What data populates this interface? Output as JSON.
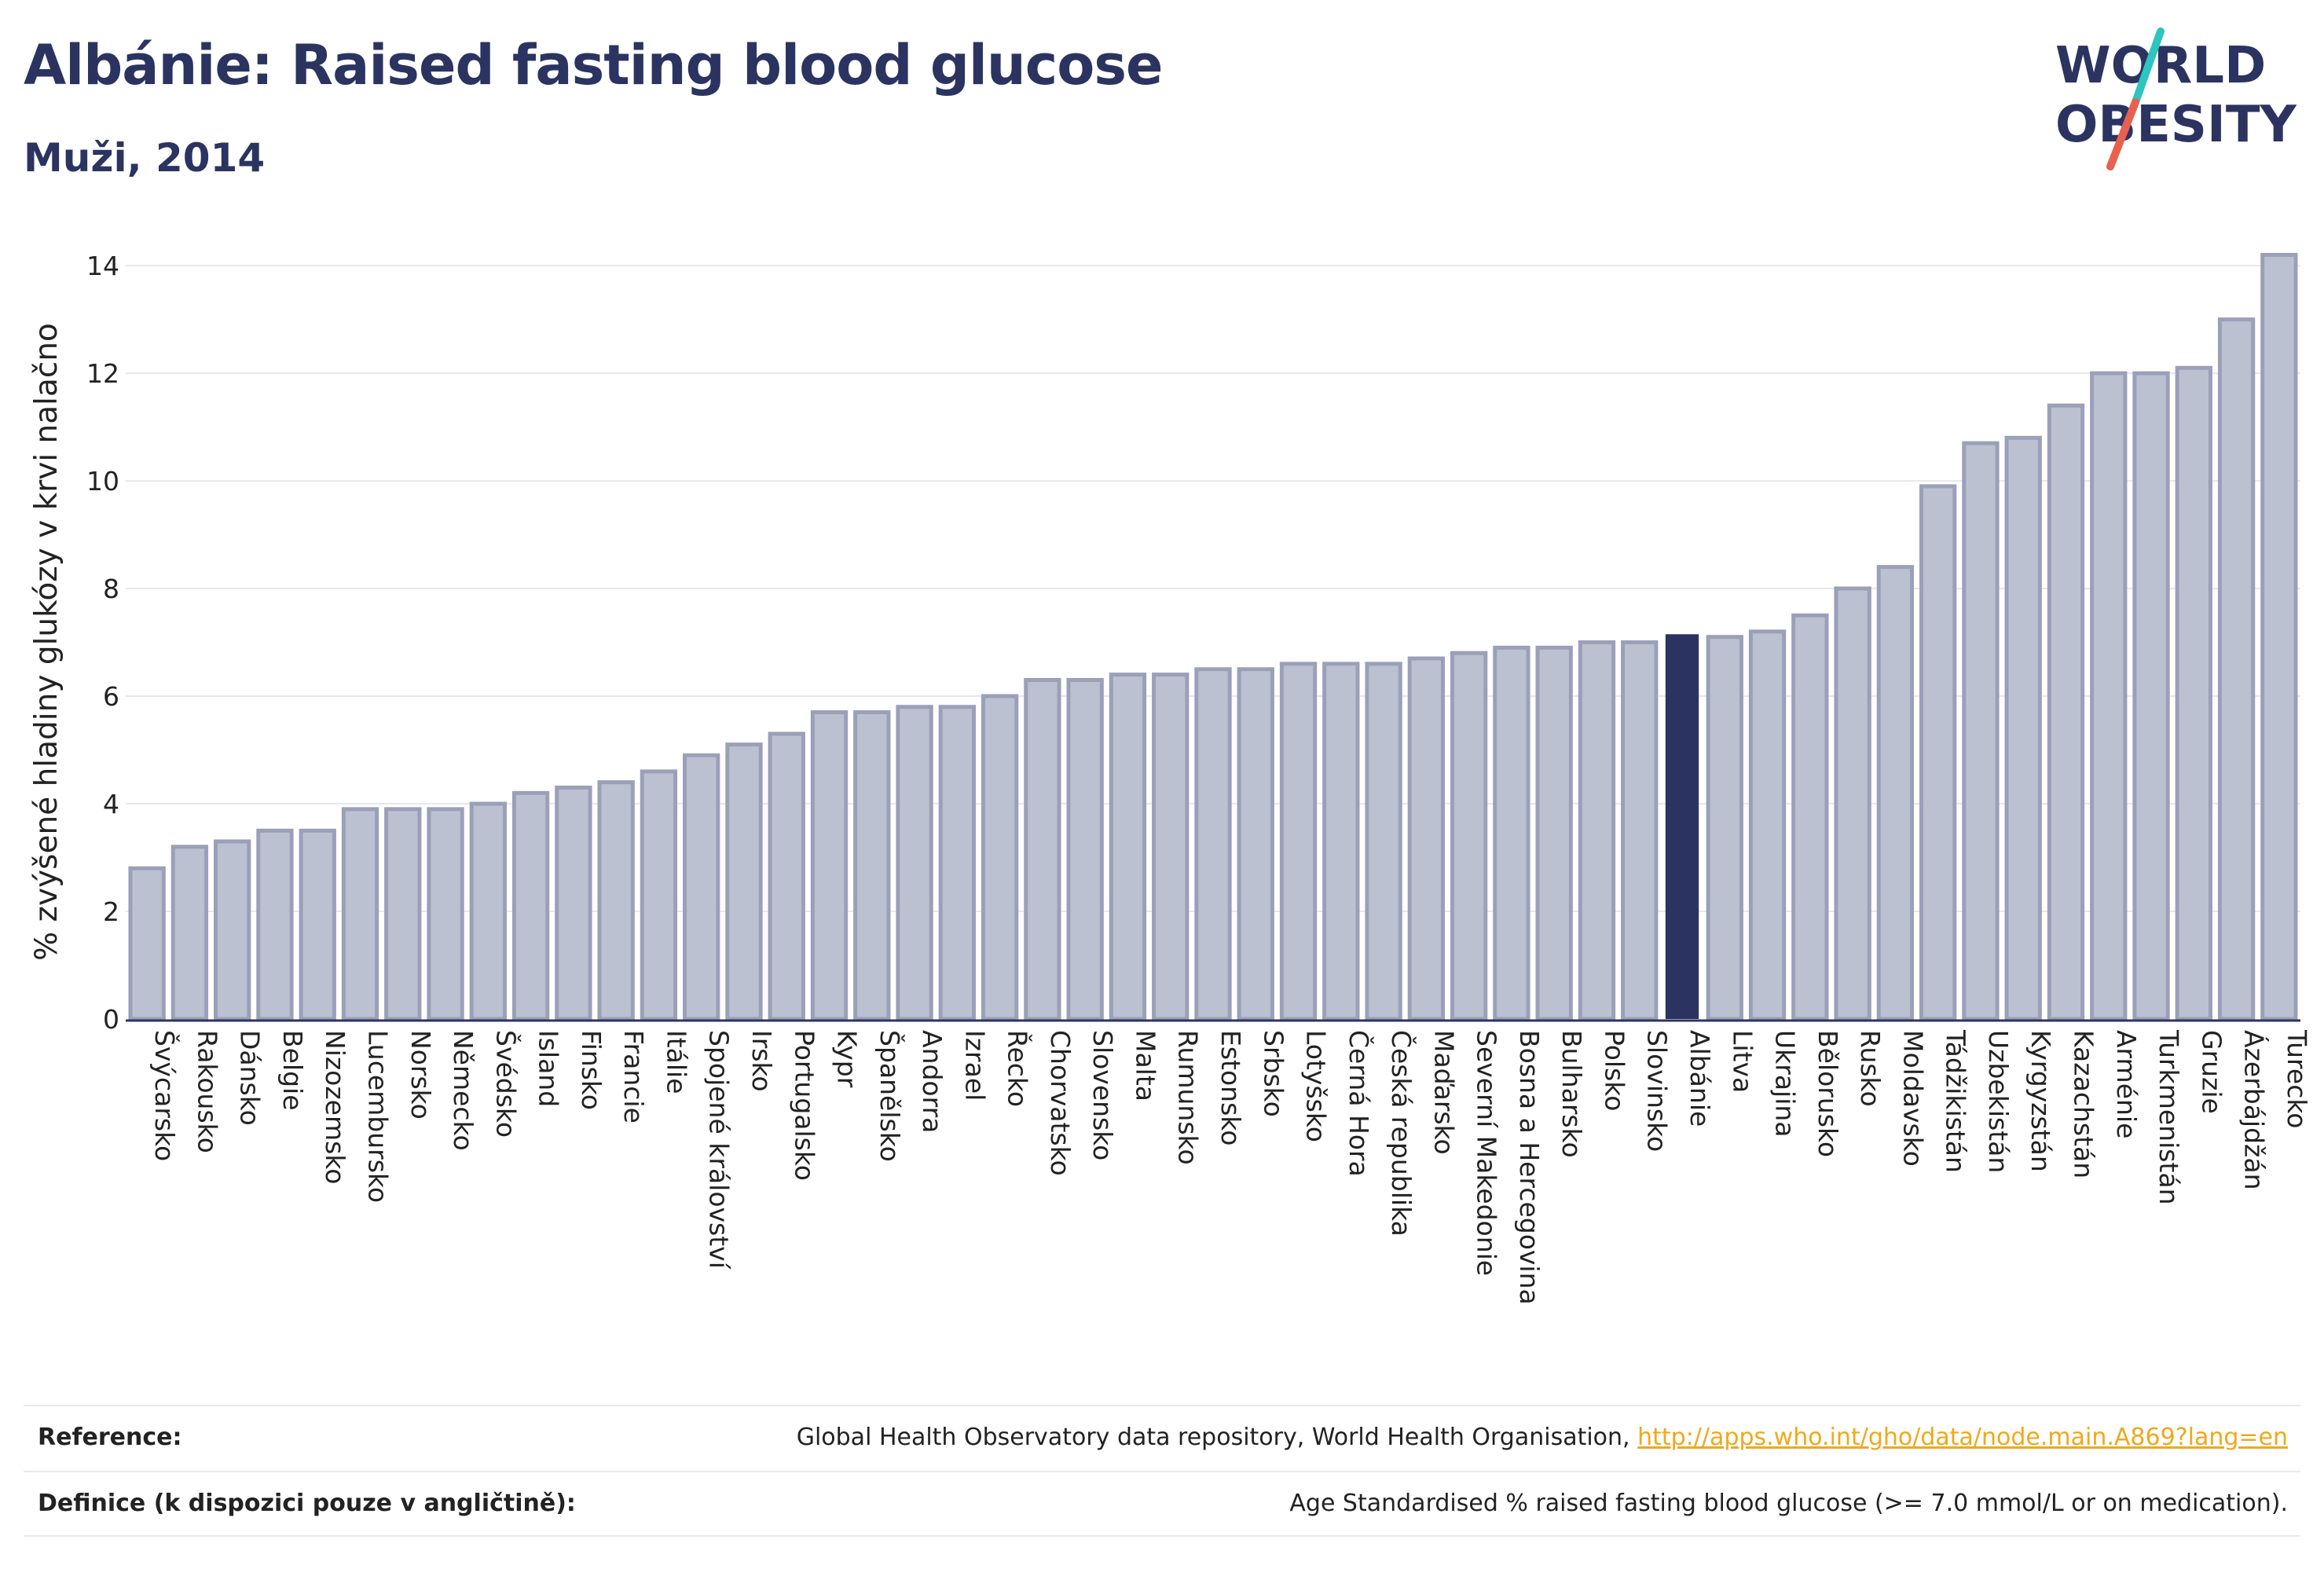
{
  "header": {
    "title": "Albánie: Raised fasting blood glucose",
    "subtitle": "Muži, 2014"
  },
  "logo": {
    "line1": "WORLD",
    "line2": "OBESITY",
    "text_color": "#2b3460",
    "slash_color_top": "#2ec4c0",
    "slash_color_bottom": "#e8614f"
  },
  "colors": {
    "bar_fill": "#bcc1d1",
    "bar_stroke": "#9aa0b8",
    "highlight_fill": "#2b3460",
    "grid": "#e6e7ee",
    "baseline": "#2b3460"
  },
  "chart_data": {
    "type": "bar",
    "ylabel": "% zvýšené hladiny glukózy v krvi nalačno",
    "ylim": [
      0,
      14.6
    ],
    "yticks": [
      0,
      2,
      4,
      6,
      8,
      10,
      12,
      14
    ],
    "grid": true,
    "highlight": "Albánie",
    "categories": [
      "Švýcarsko",
      "Rakousko",
      "Dánsko",
      "Belgie",
      "Nizozemsko",
      "Lucembursko",
      "Norsko",
      "Německo",
      "Švédsko",
      "Island",
      "Finsko",
      "Francie",
      "Itálie",
      "Spojené království",
      "Irsko",
      "Portugalsko",
      "Kypr",
      "Španělsko",
      "Andorra",
      "Izrael",
      "Řecko",
      "Chorvatsko",
      "Slovensko",
      "Malta",
      "Rumunsko",
      "Estonsko",
      "Srbsko",
      "Lotyšsko",
      "Černá Hora",
      "Česká republika",
      "Maďarsko",
      "Severní Makedonie",
      "Bosna a Hercegovina",
      "Bulharsko",
      "Polsko",
      "Slovinsko",
      "Albánie",
      "Litva",
      "Ukrajina",
      "Bělorusko",
      "Rusko",
      "Moldavsko",
      "Tádžikistán",
      "Uzbekistán",
      "Kyrgyzstán",
      "Kazachstán",
      "Arménie",
      "Turkmenistán",
      "Gruzie",
      "Ázerbájdžán",
      "Turecko"
    ],
    "values": [
      2.8,
      3.2,
      3.3,
      3.5,
      3.5,
      3.9,
      3.9,
      3.9,
      4.0,
      4.2,
      4.3,
      4.4,
      4.6,
      4.9,
      5.1,
      5.3,
      5.7,
      5.7,
      5.8,
      5.8,
      6.0,
      6.3,
      6.3,
      6.4,
      6.4,
      6.5,
      6.5,
      6.6,
      6.6,
      6.6,
      6.7,
      6.8,
      6.9,
      6.9,
      7.0,
      7.0,
      7.15,
      7.1,
      7.2,
      7.5,
      8.0,
      8.4,
      9.9,
      10.7,
      10.8,
      11.4,
      12.0,
      12.0,
      12.1,
      13.0,
      14.2
    ]
  },
  "footer": {
    "reference_label": "Reference:",
    "reference_text": "Global Health Observatory data repository, World Health Organisation,",
    "reference_link": "http://apps.who.int/gho/data/node.main.A869?lang=en",
    "definition_label": "Definice (k dispozici pouze v angličtině):",
    "definition_text": "Age Standardised % raised fasting blood glucose (>= 7.0 mmol/L or on medication)."
  }
}
